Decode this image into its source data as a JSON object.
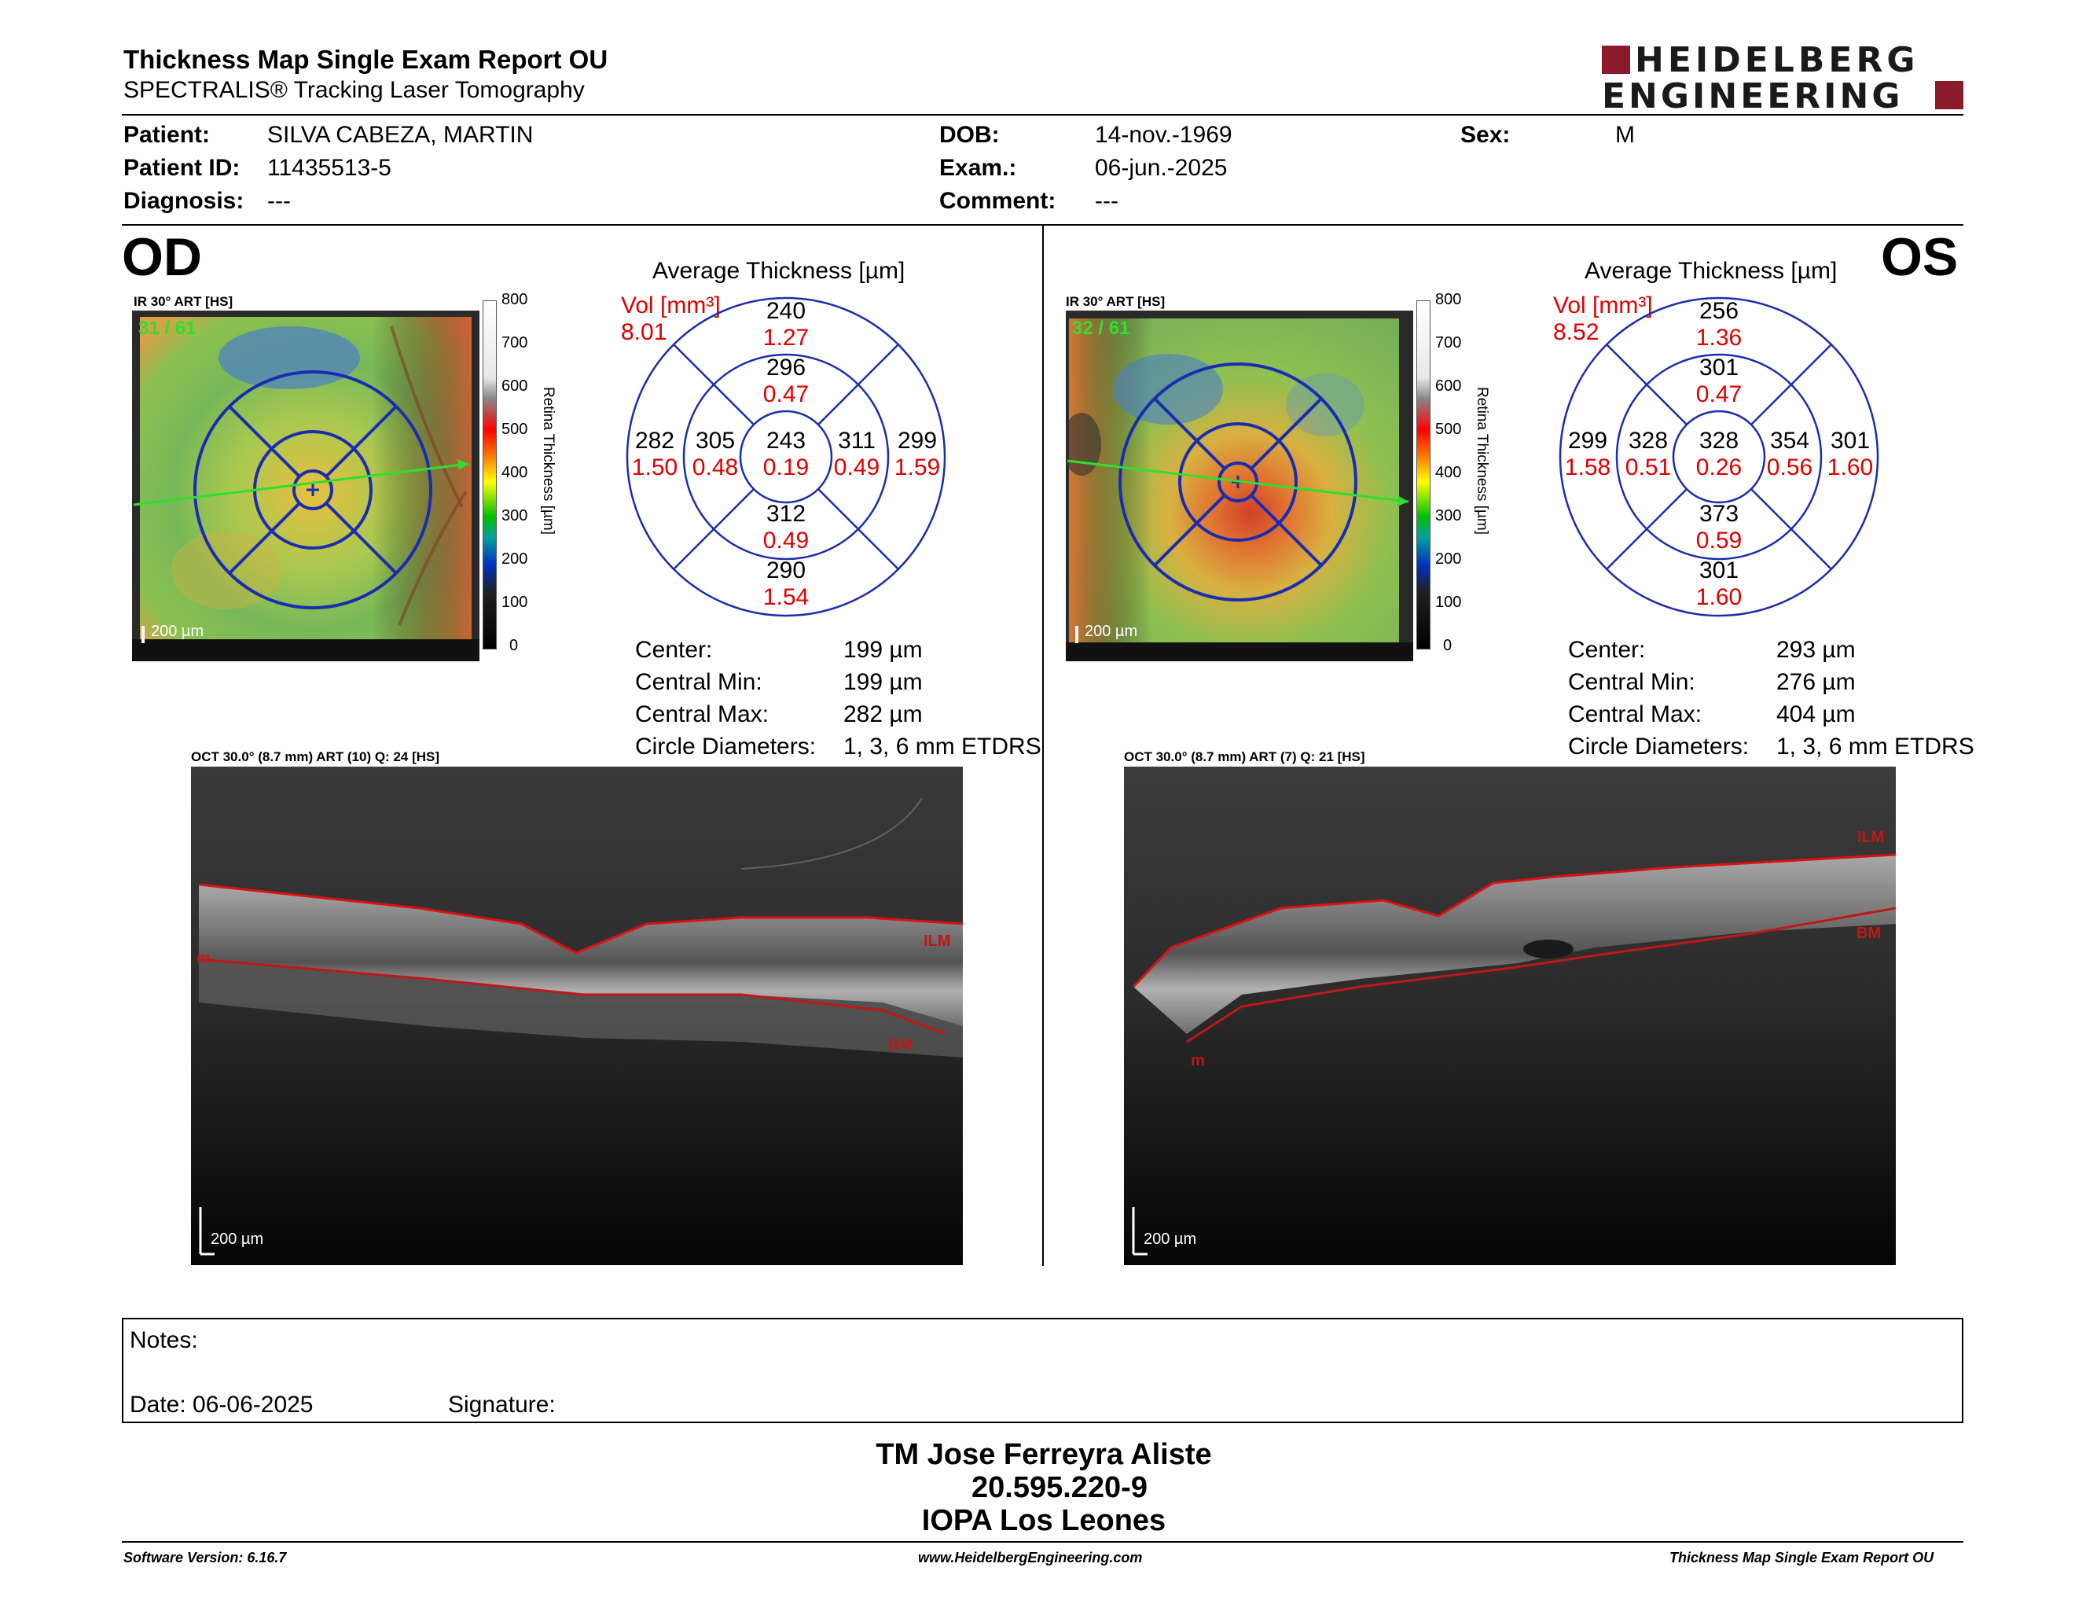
{
  "header": {
    "title": "Thickness Map Single Exam Report OU",
    "subtitle": "SPECTRALIS® Tracking Laser Tomography",
    "logo_line1": "HEIDELBERG",
    "logo_line2": "ENGINEERING",
    "brand_color": "#8b1a2b"
  },
  "patient": {
    "patient_label": "Patient:",
    "patient_value": "SILVA CABEZA, MARTIN",
    "id_label": "Patient ID:",
    "id_value": "11435513-5",
    "diag_label": "Diagnosis:",
    "diag_value": "---",
    "dob_label": "DOB:",
    "dob_value": "14-nov.-1969",
    "exam_label": "Exam.:",
    "exam_value": "06-jun.-2025",
    "comment_label": "Comment:",
    "comment_value": "---",
    "sex_label": "Sex:",
    "sex_value": "M"
  },
  "od": {
    "eye": "OD",
    "ir_label": "IR 30° ART [HS]",
    "frame": "31 / 61",
    "scale_ir": "200 µm",
    "colorbar_ticks": [
      "800",
      "700",
      "600",
      "500",
      "400",
      "300",
      "200",
      "100",
      "0"
    ],
    "colorbar_title": "Retina Thickness [µm]",
    "avg_title": "Average Thickness [µm]",
    "vol_label": "Vol [mm³]",
    "vol_value": "8.01",
    "etdrs": {
      "center_t": "243",
      "center_v": "0.19",
      "inner_sup_t": "296",
      "inner_sup_v": "0.47",
      "inner_inf_t": "312",
      "inner_inf_v": "0.49",
      "inner_left_t": "305",
      "inner_left_v": "0.48",
      "inner_right_t": "311",
      "inner_right_v": "0.49",
      "outer_sup_t": "240",
      "outer_sup_v": "1.27",
      "outer_inf_t": "290",
      "outer_inf_v": "1.54",
      "outer_left_t": "282",
      "outer_left_v": "1.50",
      "outer_right_t": "299",
      "outer_right_v": "1.59"
    },
    "stats": [
      {
        "label": "Center:",
        "value": "199 µm"
      },
      {
        "label": "Central Min:",
        "value": "199 µm"
      },
      {
        "label": "Central Max:",
        "value": "282 µm"
      },
      {
        "label": "Circle Diameters:",
        "value": "1, 3, 6 mm ETDRS"
      }
    ],
    "oct_label": "OCT 30.0° (8.7 mm) ART (10) Q: 24 [HS]",
    "scale_oct": "200 µm",
    "ilm": "ILM",
    "bm": "BM",
    "m_left": "m"
  },
  "os": {
    "eye": "OS",
    "ir_label": "IR 30° ART [HS]",
    "frame": "32 / 61",
    "scale_ir": "200 µm",
    "colorbar_ticks": [
      "800",
      "700",
      "600",
      "500",
      "400",
      "300",
      "200",
      "100",
      "0"
    ],
    "colorbar_title": "Retina Thickness [µm]",
    "avg_title": "Average Thickness [µm]",
    "vol_label": "Vol [mm³]",
    "vol_value": "8.52",
    "etdrs": {
      "center_t": "328",
      "center_v": "0.26",
      "inner_sup_t": "301",
      "inner_sup_v": "0.47",
      "inner_inf_t": "373",
      "inner_inf_v": "0.59",
      "inner_left_t": "328",
      "inner_left_v": "0.51",
      "inner_right_t": "354",
      "inner_right_v": "0.56",
      "outer_sup_t": "256",
      "outer_sup_v": "1.36",
      "outer_inf_t": "301",
      "outer_inf_v": "1.60",
      "outer_left_t": "299",
      "outer_left_v": "1.58",
      "outer_right_t": "301",
      "outer_right_v": "1.60"
    },
    "stats": [
      {
        "label": "Center:",
        "value": "293 µm"
      },
      {
        "label": "Central Min:",
        "value": "276 µm"
      },
      {
        "label": "Central Max:",
        "value": "404 µm"
      },
      {
        "label": "Circle Diameters:",
        "value": "1, 3, 6 mm ETDRS"
      }
    ],
    "oct_label": "OCT 30.0° (8.7 mm) ART (7) Q: 21 [HS]",
    "scale_oct": "200 µm",
    "ilm": "ILM",
    "bm": "BM",
    "m_left": "m"
  },
  "notes": {
    "notes_label": "Notes:",
    "date_label": "Date: 06-06-2025",
    "signature_label": "Signature:"
  },
  "signer": {
    "name": "TM Jose Ferreyra Aliste",
    "rut": "20.595.220-9",
    "org": "IOPA Los Leones"
  },
  "footer": {
    "software": "Software Version: 6.16.7",
    "website": "www.HeidelbergEngineering.com",
    "report": "Thickness Map Single Exam Report OU"
  }
}
